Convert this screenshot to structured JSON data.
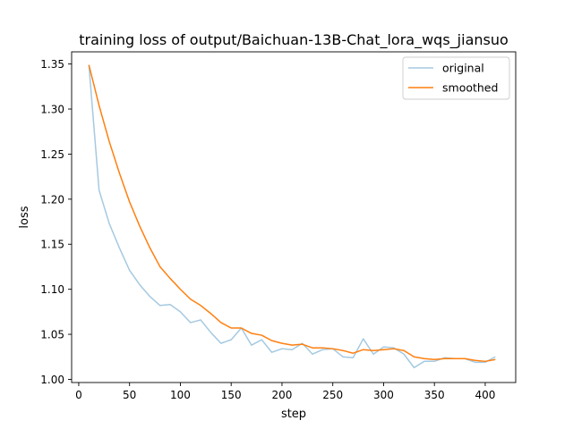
{
  "chart_data": {
    "type": "line",
    "title": "training loss of output/Baichuan-13B-Chat_lora_wqs_jiansuo",
    "xlabel": "step",
    "ylabel": "loss",
    "xlim": [
      -7,
      430
    ],
    "ylim": [
      0.9965,
      1.3635
    ],
    "xticks": [
      0,
      50,
      100,
      150,
      200,
      250,
      300,
      350,
      400
    ],
    "yticks": [
      1.0,
      1.05,
      1.1,
      1.15,
      1.2,
      1.25,
      1.3,
      1.35
    ],
    "ytick_labels": [
      "1.00",
      "1.05",
      "1.10",
      "1.15",
      "1.20",
      "1.25",
      "1.30",
      "1.35"
    ],
    "grid": false,
    "legend_position": "top-right",
    "x": [
      10,
      20,
      30,
      40,
      50,
      60,
      70,
      80,
      90,
      100,
      110,
      120,
      130,
      140,
      150,
      160,
      170,
      180,
      190,
      200,
      210,
      220,
      230,
      240,
      250,
      260,
      270,
      280,
      290,
      300,
      310,
      320,
      330,
      340,
      350,
      360,
      370,
      380,
      390,
      400,
      410
    ],
    "series": [
      {
        "name": "original",
        "color": "#1f77b4",
        "opacity": 0.4,
        "values": [
          1.349,
          1.21,
          1.173,
          1.146,
          1.121,
          1.105,
          1.092,
          1.082,
          1.083,
          1.075,
          1.063,
          1.066,
          1.052,
          1.04,
          1.044,
          1.057,
          1.038,
          1.044,
          1.03,
          1.034,
          1.033,
          1.04,
          1.028,
          1.033,
          1.034,
          1.025,
          1.024,
          1.045,
          1.028,
          1.036,
          1.035,
          1.028,
          1.013,
          1.02,
          1.02,
          1.024,
          1.023,
          1.023,
          1.019,
          1.019,
          1.025
        ]
      },
      {
        "name": "smoothed",
        "color": "#ff7f0e",
        "opacity": 1.0,
        "values": [
          1.349,
          1.304,
          1.264,
          1.229,
          1.197,
          1.17,
          1.146,
          1.125,
          1.112,
          1.1,
          1.089,
          1.082,
          1.073,
          1.063,
          1.057,
          1.057,
          1.051,
          1.049,
          1.043,
          1.04,
          1.038,
          1.039,
          1.035,
          1.035,
          1.034,
          1.032,
          1.029,
          1.033,
          1.032,
          1.033,
          1.034,
          1.032,
          1.025,
          1.023,
          1.022,
          1.023,
          1.023,
          1.023,
          1.021,
          1.02,
          1.022
        ]
      }
    ]
  }
}
